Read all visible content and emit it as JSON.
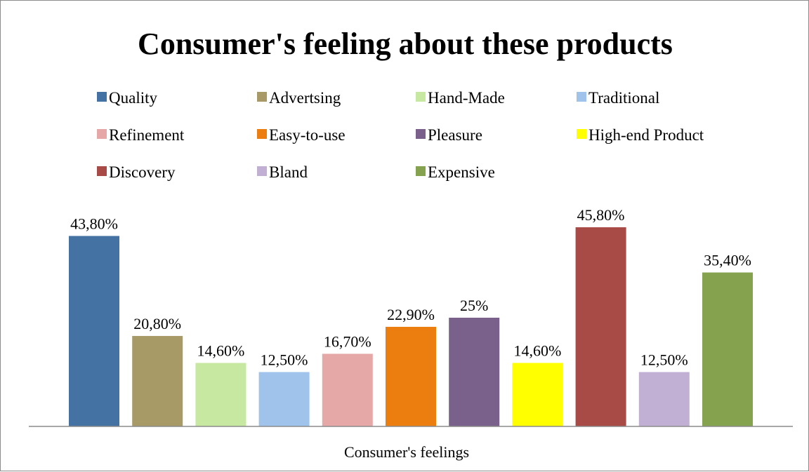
{
  "chart_data": {
    "type": "bar",
    "title": "Consumer's feeling about these products",
    "xlabel": "Consumer's feelings",
    "ylabel": "",
    "categories": [
      "Consumer's feelings"
    ],
    "ylim": [
      0,
      0.6
    ],
    "grid": false,
    "legend_position": "top",
    "series": [
      {
        "name": "Quality",
        "value": 0.438,
        "label": "43,80%",
        "color": "#4472a2"
      },
      {
        "name": "Advertsing",
        "value": 0.208,
        "label": "20,80%",
        "color": "#a89a66"
      },
      {
        "name": "Hand-Made",
        "value": 0.146,
        "label": "14,60%",
        "color": "#c6e8a0"
      },
      {
        "name": "Traditional",
        "value": 0.125,
        "label": "12,50%",
        "color": "#9fc3ea"
      },
      {
        "name": "Refinement",
        "value": 0.167,
        "label": "16,70%",
        "color": "#e6a8a6"
      },
      {
        "name": "Easy-to-use",
        "value": 0.229,
        "label": "22,90%",
        "color": "#ec7e10"
      },
      {
        "name": "Pleasure",
        "value": 0.25,
        "label": "25%",
        "color": "#79618c"
      },
      {
        "name": "High-end Product",
        "value": 0.146,
        "label": "14,60%",
        "color": "#ffff00"
      },
      {
        "name": "Discovery",
        "value": 0.458,
        "label": "45,80%",
        "color": "#a84a46"
      },
      {
        "name": "Bland",
        "value": 0.125,
        "label": "12,50%",
        "color": "#c2b0d4"
      },
      {
        "name": "Expensive",
        "value": 0.354,
        "label": "35,40%",
        "color": "#85a24e"
      }
    ]
  }
}
